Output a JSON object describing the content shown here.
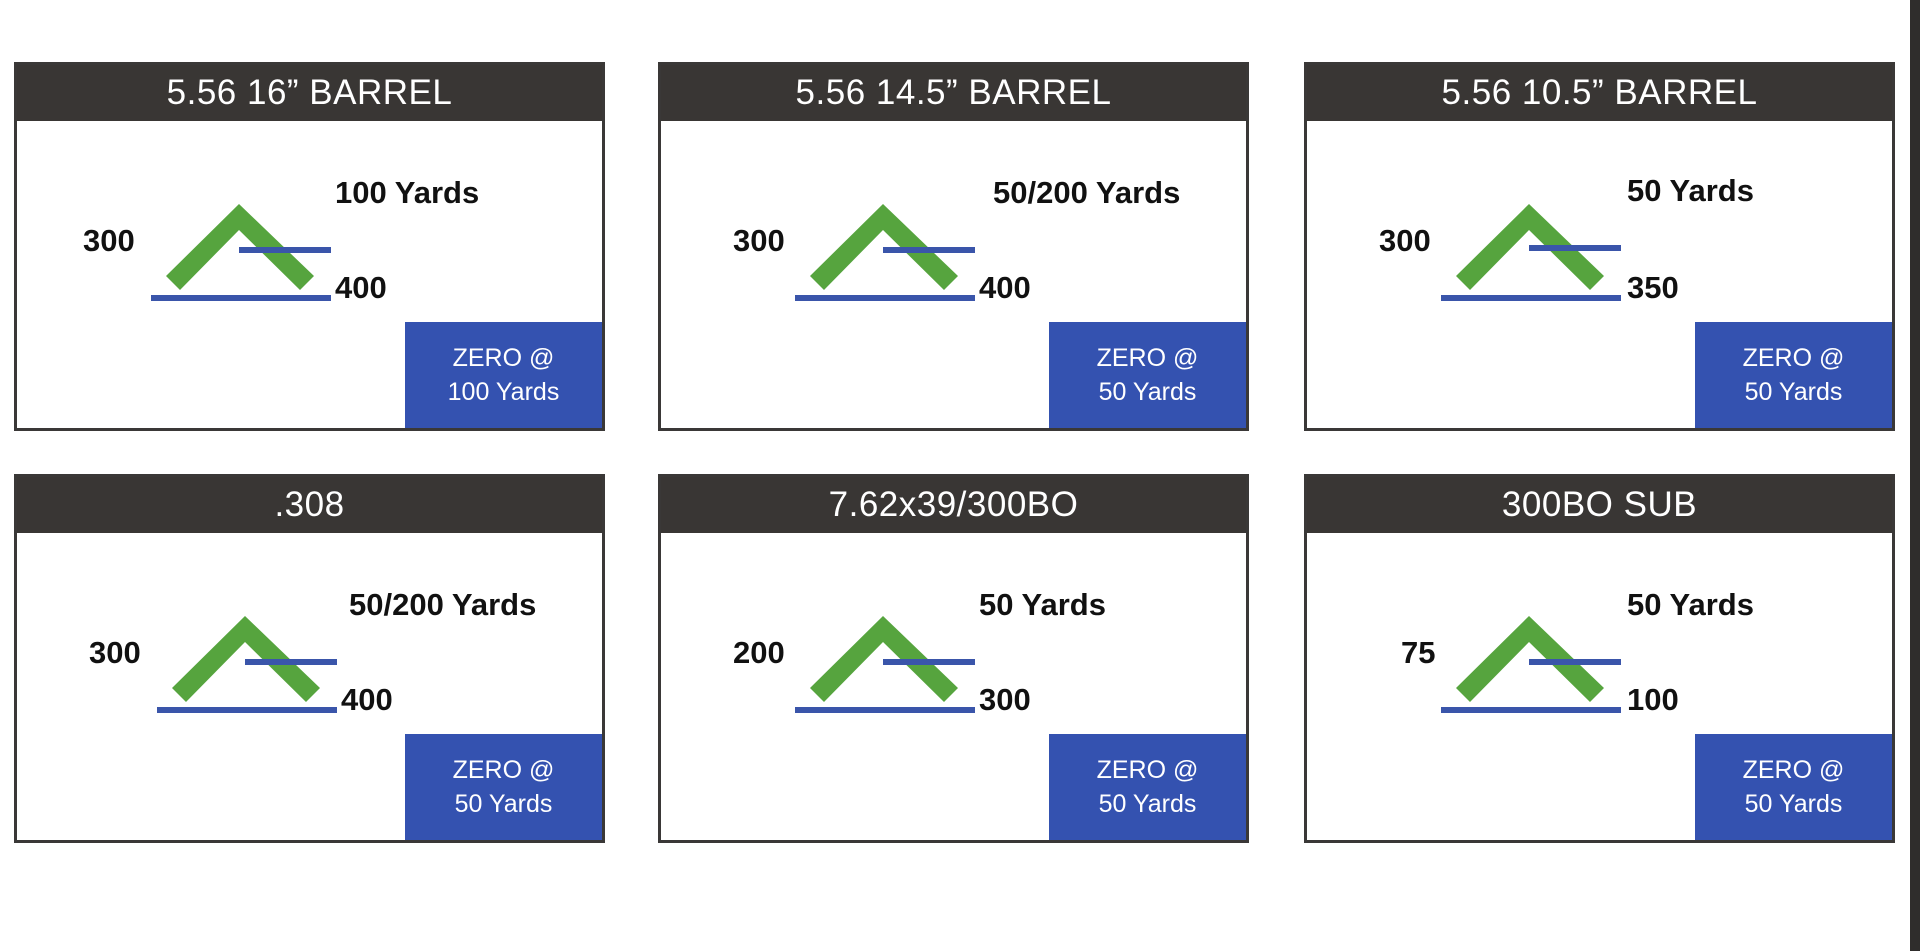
{
  "cards": [
    {
      "title": "5.56 16” BARREL",
      "near_zero": "100 Yards",
      "mid_range": "300",
      "far_zero": "400",
      "zero_line1": "ZERO @",
      "zero_line2": "100 Yards"
    },
    {
      "title": "5.56 14.5” BARREL",
      "near_zero": "50/200 Yards",
      "mid_range": "300",
      "far_zero": "400",
      "zero_line1": "ZERO @",
      "zero_line2": "50 Yards"
    },
    {
      "title": "5.56 10.5” BARREL",
      "near_zero": "50 Yards",
      "mid_range": "300",
      "far_zero": "350",
      "zero_line1": "ZERO @",
      "zero_line2": "50 Yards"
    },
    {
      "title": ".308",
      "near_zero": "50/200 Yards",
      "mid_range": "300",
      "far_zero": "400",
      "zero_line1": "ZERO @",
      "zero_line2": "50 Yards"
    },
    {
      "title": "7.62x39/300BO",
      "near_zero": "50 Yards",
      "mid_range": "200",
      "far_zero": "300",
      "zero_line1": "ZERO @",
      "zero_line2": "50 Yards"
    },
    {
      "title": "300BO SUB",
      "near_zero": "50 Yards",
      "mid_range": "75",
      "far_zero": "100",
      "zero_line1": "ZERO @",
      "zero_line2": "50 Yards"
    }
  ],
  "colors": {
    "header_bg": "#393634",
    "chevron": "#56a43e",
    "line": "#3a55aa",
    "zero_box": "#3452b0"
  }
}
